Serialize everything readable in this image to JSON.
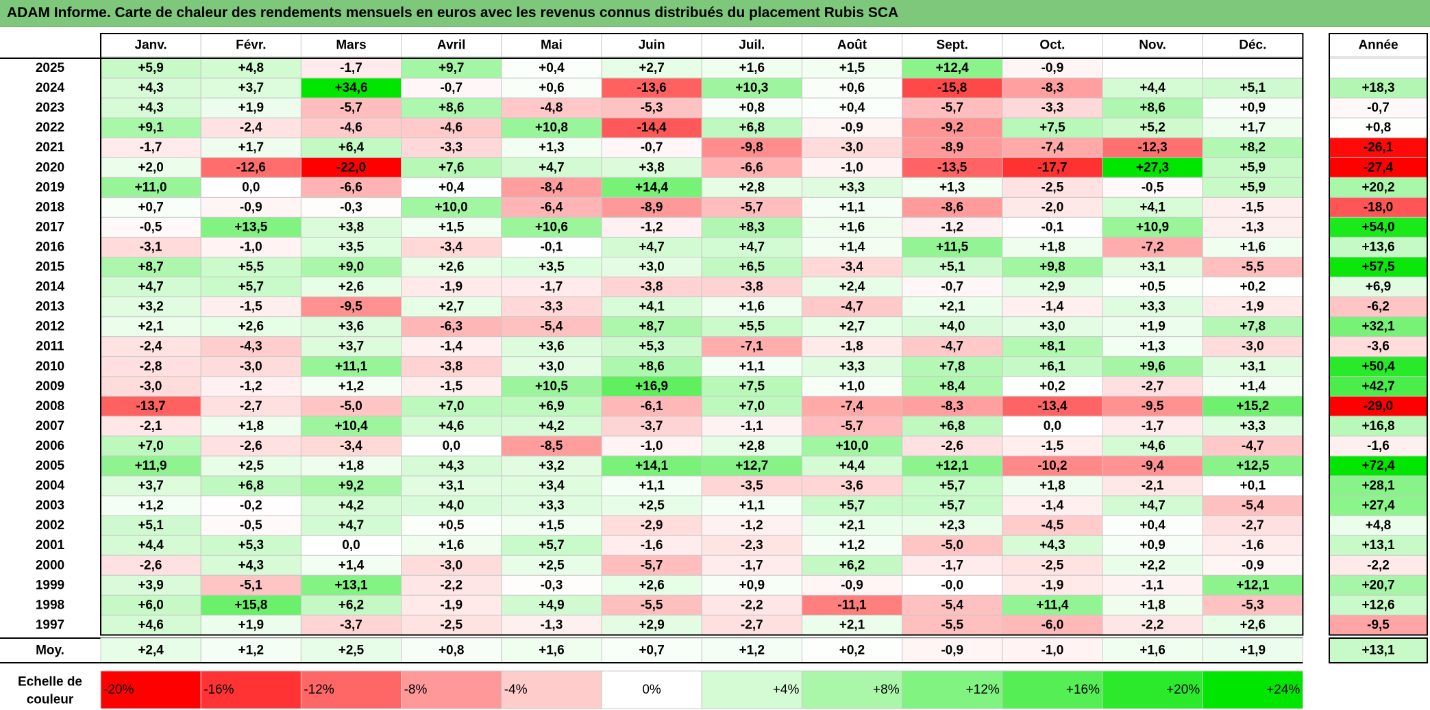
{
  "title": "ADAM Informe. Carte de chaleur des rendements mensuels en euros avec les revenus connus distribués du placement Rubis SCA",
  "chart_data": {
    "type": "heatmap",
    "months": [
      "Janv.",
      "Févr.",
      "Mars",
      "Avril",
      "Mai",
      "Juin",
      "Juil.",
      "Août",
      "Sept.",
      "Oct.",
      "Nov.",
      "Déc."
    ],
    "year_header": "Année",
    "rows": [
      {
        "label": "2025",
        "values": [
          "+5,9",
          "+4,8",
          "-1,7",
          "+9,7",
          "+0,4",
          "+2,7",
          "+1,6",
          "+1,5",
          "+12,4",
          "-0,9",
          "",
          ""
        ],
        "annual": ""
      },
      {
        "label": "2024",
        "values": [
          "+4,3",
          "+3,7",
          "+34,6",
          "-0,7",
          "+0,6",
          "-13,6",
          "+10,3",
          "+0,6",
          "-15,8",
          "-8,3",
          "+4,4",
          "+5,1"
        ],
        "annual": "+18,3"
      },
      {
        "label": "2023",
        "values": [
          "+4,3",
          "+1,9",
          "-5,7",
          "+8,6",
          "-4,8",
          "-5,3",
          "+0,8",
          "+0,4",
          "-5,7",
          "-3,3",
          "+8,6",
          "+0,9"
        ],
        "annual": "-0,7"
      },
      {
        "label": "2022",
        "values": [
          "+9,1",
          "-2,4",
          "-4,6",
          "-4,6",
          "+10,8",
          "-14,4",
          "+6,8",
          "-0,9",
          "-9,2",
          "+7,5",
          "+5,2",
          "+1,7"
        ],
        "annual": "+0,8"
      },
      {
        "label": "2021",
        "values": [
          "-1,7",
          "+1,7",
          "+6,4",
          "-3,3",
          "+1,3",
          "-0,7",
          "-9,8",
          "-3,0",
          "-8,9",
          "-7,4",
          "-12,3",
          "+8,2"
        ],
        "annual": "-26,1"
      },
      {
        "label": "2020",
        "values": [
          "+2,0",
          "-12,6",
          "-22,0",
          "+7,6",
          "+4,7",
          "+3,8",
          "-6,6",
          "-1,0",
          "-13,5",
          "-17,7",
          "+27,3",
          "+5,9"
        ],
        "annual": "-27,4"
      },
      {
        "label": "2019",
        "values": [
          "+11,0",
          "0,0",
          "-6,6",
          "+0,4",
          "-8,4",
          "+14,4",
          "+2,8",
          "+3,3",
          "+1,3",
          "-2,5",
          "-0,5",
          "+5,9"
        ],
        "annual": "+20,2"
      },
      {
        "label": "2018",
        "values": [
          "+0,7",
          "-0,9",
          "-0,3",
          "+10,0",
          "-6,4",
          "-8,9",
          "-5,7",
          "+1,1",
          "-8,6",
          "-2,0",
          "+4,1",
          "-1,5"
        ],
        "annual": "-18,0"
      },
      {
        "label": "2017",
        "values": [
          "-0,5",
          "+13,5",
          "+3,8",
          "+1,5",
          "+10,6",
          "-1,2",
          "+8,3",
          "+1,6",
          "-1,2",
          "-0,1",
          "+10,9",
          "-1,3"
        ],
        "annual": "+54,0"
      },
      {
        "label": "2016",
        "values": [
          "-3,1",
          "-1,0",
          "+3,5",
          "-3,4",
          "-0,1",
          "+4,7",
          "+4,7",
          "+1,4",
          "+11,5",
          "+1,8",
          "-7,2",
          "+1,6"
        ],
        "annual": "+13,6"
      },
      {
        "label": "2015",
        "values": [
          "+8,7",
          "+5,5",
          "+9,0",
          "+2,6",
          "+3,5",
          "+3,0",
          "+6,5",
          "-3,4",
          "+5,1",
          "+9,8",
          "+3,1",
          "-5,5"
        ],
        "annual": "+57,5"
      },
      {
        "label": "2014",
        "values": [
          "+4,7",
          "+5,7",
          "+2,6",
          "-1,9",
          "-1,7",
          "-3,8",
          "-3,8",
          "+2,4",
          "-0,7",
          "+2,9",
          "+0,5",
          "+0,2"
        ],
        "annual": "+6,9"
      },
      {
        "label": "2013",
        "values": [
          "+3,2",
          "-1,5",
          "-9,5",
          "+2,7",
          "-3,3",
          "+4,1",
          "+1,6",
          "-4,7",
          "+2,1",
          "-1,4",
          "+3,3",
          "-1,9"
        ],
        "annual": "-6,2"
      },
      {
        "label": "2012",
        "values": [
          "+2,1",
          "+2,6",
          "+3,6",
          "-6,3",
          "-5,4",
          "+8,7",
          "+5,5",
          "+2,7",
          "+4,0",
          "+3,0",
          "+1,9",
          "+7,8"
        ],
        "annual": "+32,1"
      },
      {
        "label": "2011",
        "values": [
          "-2,4",
          "-4,3",
          "+3,7",
          "-1,4",
          "+3,6",
          "+5,3",
          "-7,1",
          "-1,8",
          "-4,7",
          "+8,1",
          "+1,3",
          "-3,0"
        ],
        "annual": "-3,6"
      },
      {
        "label": "2010",
        "values": [
          "-2,8",
          "-3,0",
          "+11,1",
          "-3,8",
          "+3,0",
          "+8,6",
          "+1,1",
          "+3,3",
          "+7,8",
          "+6,1",
          "+9,6",
          "+3,1"
        ],
        "annual": "+50,4"
      },
      {
        "label": "2009",
        "values": [
          "-3,0",
          "-1,2",
          "+1,2",
          "-1,5",
          "+10,5",
          "+16,9",
          "+7,5",
          "+1,0",
          "+8,4",
          "+0,2",
          "-2,7",
          "+1,4"
        ],
        "annual": "+42,7"
      },
      {
        "label": "2008",
        "values": [
          "-13,7",
          "-2,7",
          "-5,0",
          "+7,0",
          "+6,9",
          "-6,1",
          "+7,0",
          "-7,4",
          "-8,3",
          "-13,4",
          "-9,5",
          "+15,2"
        ],
        "annual": "-29,0"
      },
      {
        "label": "2007",
        "values": [
          "-2,1",
          "+1,8",
          "+10,4",
          "+4,6",
          "+4,2",
          "-3,7",
          "-1,1",
          "-5,7",
          "+6,8",
          "0,0",
          "-1,7",
          "+3,3"
        ],
        "annual": "+16,8"
      },
      {
        "label": "2006",
        "values": [
          "+7,0",
          "-2,6",
          "-3,4",
          "0,0",
          "-8,5",
          "-1,0",
          "+2,8",
          "+10,0",
          "-2,6",
          "-1,5",
          "+4,6",
          "-4,7"
        ],
        "annual": "-1,6"
      },
      {
        "label": "2005",
        "values": [
          "+11,9",
          "+2,5",
          "+1,8",
          "+4,3",
          "+3,2",
          "+14,1",
          "+12,7",
          "+4,4",
          "+12,1",
          "-10,2",
          "-9,4",
          "+12,5"
        ],
        "annual": "+72,4"
      },
      {
        "label": "2004",
        "values": [
          "+3,7",
          "+6,8",
          "+9,2",
          "+3,1",
          "+3,4",
          "+1,1",
          "-3,5",
          "-3,6",
          "+5,7",
          "+1,8",
          "-2,1",
          "+0,1"
        ],
        "annual": "+28,1"
      },
      {
        "label": "2003",
        "values": [
          "+1,2",
          "-0,2",
          "+4,2",
          "+4,0",
          "+3,3",
          "+2,5",
          "+1,1",
          "+5,7",
          "+5,7",
          "-1,4",
          "+4,7",
          "-5,4"
        ],
        "annual": "+27,4"
      },
      {
        "label": "2002",
        "values": [
          "+5,1",
          "-0,5",
          "+4,7",
          "+0,5",
          "+1,5",
          "-2,9",
          "-1,2",
          "+2,1",
          "+2,3",
          "-4,5",
          "+0,4",
          "-2,7"
        ],
        "annual": "+4,8"
      },
      {
        "label": "2001",
        "values": [
          "+4,4",
          "+5,3",
          "0,0",
          "+1,6",
          "+5,7",
          "-1,6",
          "-2,3",
          "+1,2",
          "-5,0",
          "+4,3",
          "+0,9",
          "-1,6"
        ],
        "annual": "+13,1"
      },
      {
        "label": "2000",
        "values": [
          "-2,6",
          "+4,3",
          "+1,4",
          "-3,0",
          "+2,5",
          "-5,7",
          "-1,7",
          "+6,2",
          "-1,7",
          "-2,5",
          "+2,2",
          "-0,9"
        ],
        "annual": "-2,2"
      },
      {
        "label": "1999",
        "values": [
          "+3,9",
          "-5,1",
          "+13,1",
          "-2,2",
          "-0,3",
          "+2,6",
          "+0,9",
          "-0,9",
          "-0,0",
          "-1,9",
          "-1,1",
          "+12,1"
        ],
        "annual": "+20,7"
      },
      {
        "label": "1998",
        "values": [
          "+6,0",
          "+15,8",
          "+6,2",
          "-1,9",
          "+4,9",
          "-5,5",
          "-2,2",
          "-11,1",
          "-5,4",
          "+11,4",
          "+1,8",
          "-5,3"
        ],
        "annual": "+12,6"
      },
      {
        "label": "1997",
        "values": [
          "+4,6",
          "+1,9",
          "-3,7",
          "-2,5",
          "-1,3",
          "+2,9",
          "-2,7",
          "+2,1",
          "-5,5",
          "-6,0",
          "-2,2",
          "+2,6"
        ],
        "annual": "-9,5"
      }
    ],
    "average": {
      "label": "Moy.",
      "values": [
        "+2,4",
        "+1,2",
        "+2,5",
        "+0,8",
        "+1,6",
        "+0,7",
        "+1,2",
        "+0,2",
        "-0,9",
        "-1,0",
        "+1,6",
        "+1,9"
      ],
      "annual": "+13,1"
    },
    "scale": {
      "label_line1": "Echelle de",
      "label_line2": "couleur",
      "steps": [
        "-20%",
        "-16%",
        "-12%",
        "-8%",
        "-4%",
        "0%",
        "+4%",
        "+8%",
        "+12%",
        "+16%",
        "+20%",
        "+24%"
      ]
    },
    "colors": {
      "negative_max": "#ff0000",
      "neutral": "#ffffff",
      "positive_max": "#00e600",
      "title_bar": "#7ec87c"
    }
  }
}
